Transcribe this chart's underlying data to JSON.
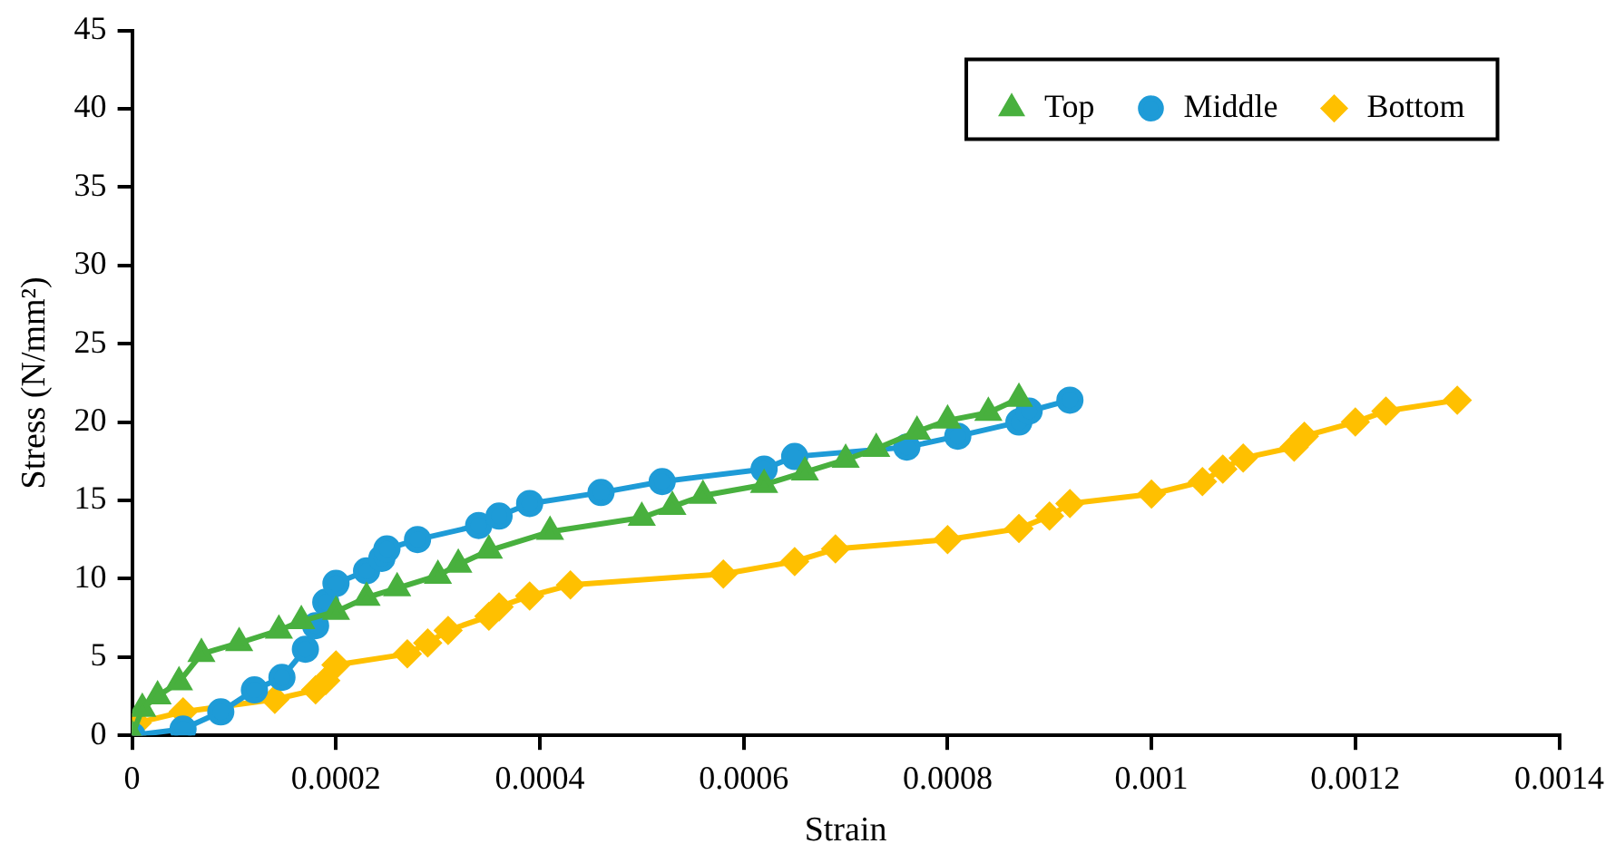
{
  "chart_data": {
    "type": "line",
    "xlabel": "Strain",
    "ylabel": "Stress (N/mm²)",
    "xlim": [
      0,
      0.0014
    ],
    "xticks": [
      0,
      0.0002,
      0.0004,
      0.0006,
      0.0008,
      0.001,
      0.0012,
      0.0014
    ],
    "ylim": [
      0,
      45
    ],
    "yticks": [
      0,
      5,
      10,
      15,
      20,
      25,
      30,
      35,
      40,
      45
    ],
    "grid": false,
    "legend": "top right",
    "line_style": "solid",
    "series": [
      {
        "name": "Top",
        "color": "#48b03e",
        "marker": "triangle",
        "x": [
          0,
          1e-05,
          2.5e-05,
          4.6e-05,
          6.8e-05,
          0.000105,
          0.000144,
          0.000166,
          0.0002,
          0.00023,
          0.00026,
          0.0003,
          0.00032,
          0.00035,
          0.00041,
          0.0005,
          0.00053,
          0.00056,
          0.00062,
          0.00066,
          0.0007,
          0.00073,
          0.00077,
          0.0008,
          0.00084,
          0.00087
        ],
        "values": [
          0,
          1.7,
          2.5,
          3.4,
          5.2,
          5.9,
          6.7,
          7.3,
          7.9,
          8.8,
          9.4,
          10.2,
          10.9,
          11.8,
          13.0,
          13.9,
          14.6,
          15.3,
          16.0,
          16.8,
          17.6,
          18.3,
          19.4,
          20.1,
          20.6,
          21.5
        ]
      },
      {
        "name": "Middle",
        "color": "#1e9bd7",
        "marker": "circle",
        "x": [
          0,
          5e-05,
          8.7e-05,
          0.00012,
          0.000147,
          0.00017,
          0.00018,
          0.00019,
          0.0002,
          0.00023,
          0.000245,
          0.00025,
          0.00028,
          0.00034,
          0.00036,
          0.00039,
          0.00046,
          0.00052,
          0.00062,
          0.00065,
          0.00076,
          0.00081,
          0.00087,
          0.00088,
          0.00092
        ],
        "values": [
          0,
          0.4,
          1.5,
          2.9,
          3.7,
          5.5,
          7.0,
          8.5,
          9.7,
          10.5,
          11.3,
          11.9,
          12.5,
          13.4,
          14.0,
          14.8,
          15.5,
          16.2,
          17.0,
          17.8,
          18.4,
          19.1,
          20.0,
          20.7,
          21.4
        ]
      },
      {
        "name": "Bottom",
        "color": "#ffc000",
        "marker": "diamond",
        "x": [
          0,
          5e-06,
          5e-05,
          0.00014,
          0.00018,
          0.00019,
          0.0002,
          0.00027,
          0.00029,
          0.00031,
          0.00035,
          0.00036,
          0.00039,
          0.00043,
          0.00058,
          0.00065,
          0.00069,
          0.0008,
          0.00087,
          0.0009,
          0.00092,
          0.001,
          0.00105,
          0.00107,
          0.00109,
          0.00114,
          0.00115,
          0.0012,
          0.00123,
          0.0013
        ],
        "values": [
          0,
          0.8,
          1.5,
          2.3,
          2.9,
          3.5,
          4.5,
          5.2,
          5.9,
          6.7,
          7.6,
          8.2,
          8.9,
          9.6,
          10.3,
          11.1,
          11.9,
          12.5,
          13.2,
          14.0,
          14.8,
          15.4,
          16.2,
          17.0,
          17.7,
          18.4,
          19.1,
          20.0,
          20.7,
          21.4
        ]
      }
    ]
  }
}
